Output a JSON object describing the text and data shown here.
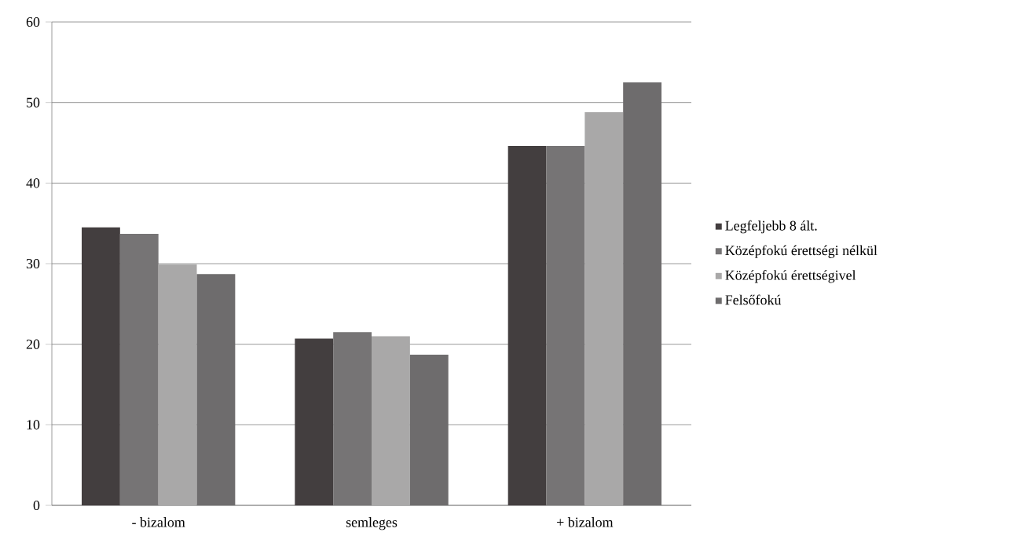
{
  "chart_data": {
    "type": "bar",
    "categories": [
      "- bizalom",
      "semleges",
      "+ bizalom"
    ],
    "series": [
      {
        "name": "Legfeljebb 8 ált.",
        "color": "#433e3f",
        "values": [
          34.5,
          20.7,
          44.6
        ]
      },
      {
        "name": "Középfokú érettségi nélkül",
        "color": "#767475",
        "values": [
          33.7,
          21.5,
          44.6
        ]
      },
      {
        "name": "Középfokú érettségivel",
        "color": "#a9a8a8",
        "values": [
          29.9,
          21.0,
          48.8
        ]
      },
      {
        "name": "Felsőfokú",
        "color": "#6e6c6d",
        "values": [
          28.7,
          18.7,
          52.5
        ]
      }
    ],
    "ylim": [
      0,
      60
    ],
    "yticks": [
      0,
      10,
      20,
      30,
      40,
      50,
      60
    ],
    "grid": "y",
    "legend": "right"
  }
}
